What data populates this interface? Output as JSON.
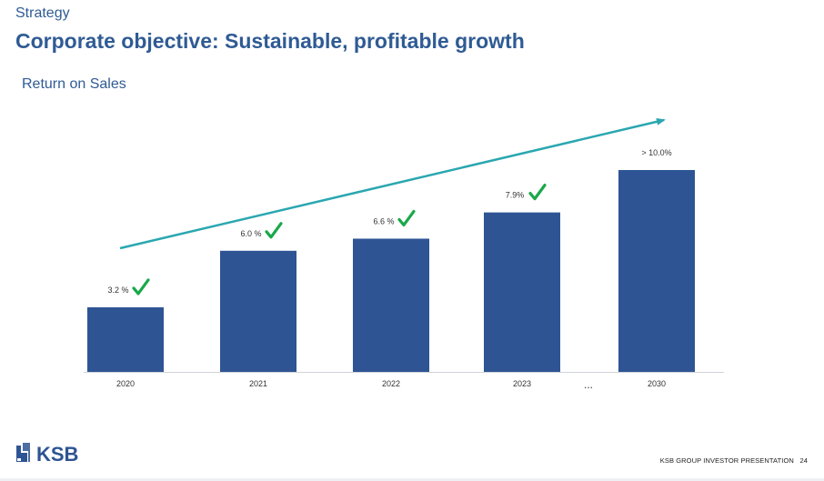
{
  "header": {
    "section": "Strategy",
    "title": "Corporate objective: Sustainable, profitable growth"
  },
  "chart_data": {
    "type": "bar",
    "title": "Return on Sales",
    "categories": [
      "2020",
      "2021",
      "2022",
      "2023",
      "2030"
    ],
    "values": [
      3.2,
      6.0,
      6.6,
      7.9,
      10.0
    ],
    "data_labels": [
      "3.2 %",
      "6.0 %",
      "6.6 %",
      "7.9%",
      "> 10.0%"
    ],
    "achieved": [
      true,
      true,
      true,
      true,
      false
    ],
    "ellipsis": "...",
    "ylim": [
      0,
      10.0
    ],
    "grid": false,
    "legend": "none",
    "colors": {
      "bar": "#2e5494",
      "trend": "#2aa7b0",
      "check": "#1aa84a",
      "axis": "#d0d3d8"
    }
  },
  "footer": {
    "logo_text": "KSB",
    "presentation": "KSB GROUP INVESTOR PRESENTATION",
    "page_number": "24"
  }
}
